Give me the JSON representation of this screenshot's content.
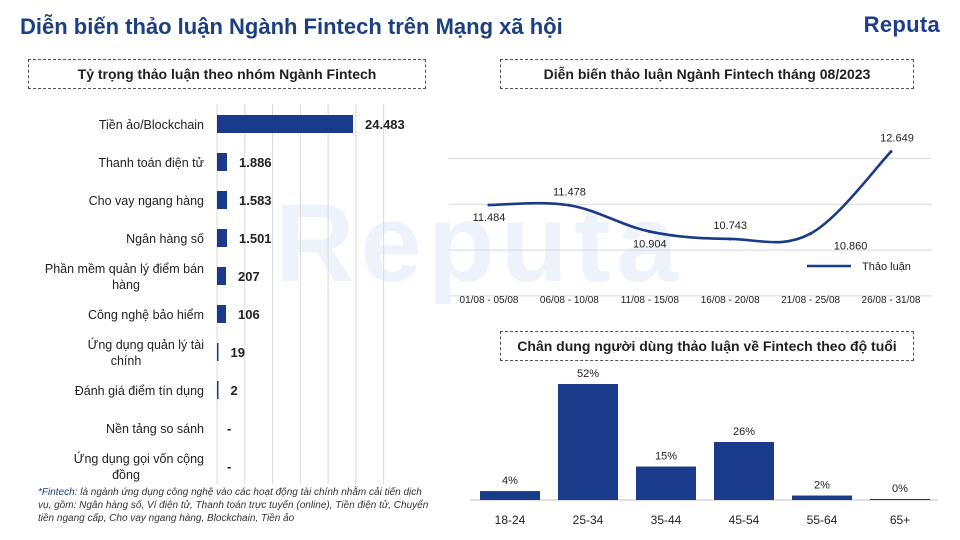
{
  "header": {
    "title": "Diễn biến thảo luận Ngành Fintech trên Mạng xã hội",
    "logo": "Reputa",
    "watermark": "Reputa"
  },
  "footnote": {
    "key": "*Fintech",
    "text": ": là ngành ứng dụng công nghệ vào các hoạt động tài chính nhằm cải tiến dịch vụ, gồm: Ngân hàng số, Ví điện tử, Thanh toán trực tuyến (online), Tiền điện tử, Chuyển tiền ngang cấp, Cho vay ngang hàng, Blockchain, Tiền ảo"
  },
  "colors": {
    "primary": "#1a3a8a",
    "title": "#1c3f82",
    "grid": "#d9d9d9"
  },
  "chart_data": [
    {
      "type": "bar",
      "orientation": "horizontal",
      "title": "Tỷ trọng thảo luận theo nhóm Ngành Fintech",
      "categories": [
        "Tiền ảo/Blockchain",
        "Thanh toán điện tử",
        "Cho vay ngang hàng",
        "Ngân hàng số",
        "Phần mềm quản lý điểm bán hàng",
        "Công nghệ bảo hiểm",
        "Ứng dụng quản lý tài chính",
        "Đánh giá điểm tín dụng",
        "Nền tảng so sánh",
        "Ứng dụng gọi vốn cộng đồng"
      ],
      "values": [
        24483,
        1886,
        1583,
        1501,
        207,
        106,
        19,
        2,
        null,
        null
      ],
      "labels": [
        "24.483",
        "1.886",
        "1.583",
        "1.501",
        "207",
        "106",
        "19",
        "2",
        "-",
        "-"
      ],
      "xlim": [
        0,
        30000
      ],
      "grid": true
    },
    {
      "type": "line",
      "title": "Diễn biến thảo luận Ngành Fintech tháng 08/2023",
      "x": [
        "01/08 - 05/08",
        "06/08 - 10/08",
        "11/08 - 15/08",
        "16/08 - 20/08",
        "21/08 - 25/08",
        "26/08 - 31/08"
      ],
      "series": [
        {
          "name": "Thảo luận",
          "values": [
            11484,
            11478,
            10904,
            10743,
            10860,
            12649
          ]
        }
      ],
      "labels": [
        "11.484",
        "11.478",
        "10.904",
        "10.743",
        "10.860",
        "12.649"
      ],
      "ylim": [
        9500,
        13000
      ],
      "grid": true,
      "legend": "right"
    },
    {
      "type": "bar",
      "title": "Chân dung người dùng thảo luận về Fintech theo độ tuổi",
      "categories": [
        "18-24",
        "25-34",
        "35-44",
        "45-54",
        "55-64",
        "65+"
      ],
      "values": [
        4,
        52,
        15,
        26,
        2,
        0
      ],
      "labels": [
        "4%",
        "52%",
        "15%",
        "26%",
        "2%",
        "0%"
      ],
      "ylim": [
        0,
        60
      ]
    }
  ]
}
